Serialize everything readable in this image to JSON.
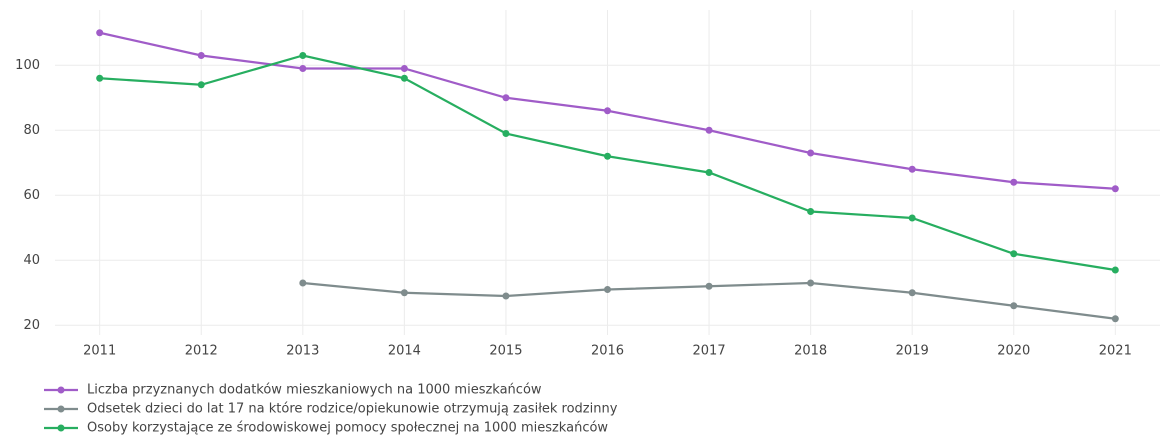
{
  "chart_data": {
    "type": "line",
    "x": [
      2011,
      2012,
      2013,
      2014,
      2015,
      2016,
      2017,
      2018,
      2019,
      2020,
      2021
    ],
    "xlim": [
      2010.56,
      2021.44
    ],
    "xticks": [
      2011,
      2012,
      2013,
      2014,
      2015,
      2016,
      2017,
      2018,
      2019,
      2020,
      2021
    ],
    "ylim": [
      17,
      117
    ],
    "yticks": [
      20,
      40,
      60,
      80,
      100
    ],
    "grid": true,
    "legend": "bottom",
    "series": [
      {
        "name": "Liczba przyznanych dodatków mieszkaniowych na 1000 mieszkańców",
        "color": "#a05cc8",
        "values": [
          110,
          103,
          99,
          99,
          90,
          86,
          80,
          73,
          68,
          64,
          62
        ]
      },
      {
        "name": "Odsetek dzieci do lat 17 na które rodzice/opiekunowie otrzymują zasiłek rodzinny",
        "color": "#7f8c8d",
        "values": [
          null,
          null,
          33,
          30,
          29,
          31,
          32,
          33,
          30,
          26,
          22
        ]
      },
      {
        "name": "Osoby korzystające ze środowiskowej pomocy społecznej na 1000 mieszkańców",
        "color": "#27ae60",
        "values": [
          96,
          94,
          103,
          96,
          79,
          72,
          67,
          55,
          53,
          42,
          37
        ]
      }
    ]
  }
}
